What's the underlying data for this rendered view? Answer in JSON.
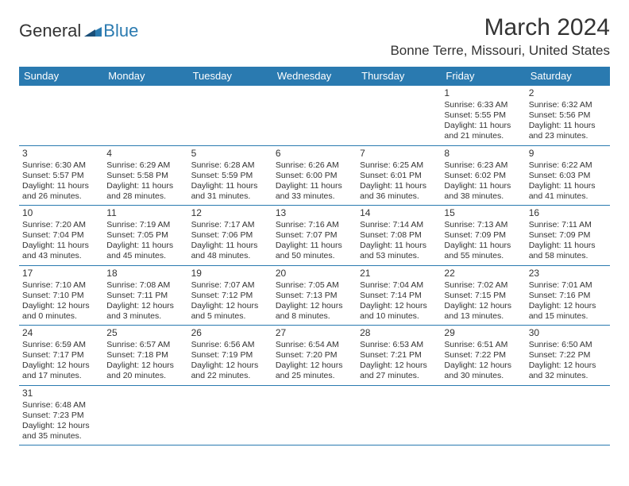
{
  "logo": {
    "text_a": "General",
    "text_b": "Blue"
  },
  "title": "March 2024",
  "location": "Bonne Terre, Missouri, United States",
  "weekdays": [
    "Sunday",
    "Monday",
    "Tuesday",
    "Wednesday",
    "Thursday",
    "Friday",
    "Saturday"
  ],
  "colors": {
    "header_bg": "#2a7ab0",
    "header_text": "#ffffff",
    "border": "#2a7ab0",
    "text": "#333333",
    "logo_blue": "#2a7ab0"
  },
  "rows": [
    [
      null,
      null,
      null,
      null,
      null,
      {
        "n": "1",
        "sunrise": "Sunrise: 6:33 AM",
        "sunset": "Sunset: 5:55 PM",
        "daylight": "Daylight: 11 hours and 21 minutes."
      },
      {
        "n": "2",
        "sunrise": "Sunrise: 6:32 AM",
        "sunset": "Sunset: 5:56 PM",
        "daylight": "Daylight: 11 hours and 23 minutes."
      }
    ],
    [
      {
        "n": "3",
        "sunrise": "Sunrise: 6:30 AM",
        "sunset": "Sunset: 5:57 PM",
        "daylight": "Daylight: 11 hours and 26 minutes."
      },
      {
        "n": "4",
        "sunrise": "Sunrise: 6:29 AM",
        "sunset": "Sunset: 5:58 PM",
        "daylight": "Daylight: 11 hours and 28 minutes."
      },
      {
        "n": "5",
        "sunrise": "Sunrise: 6:28 AM",
        "sunset": "Sunset: 5:59 PM",
        "daylight": "Daylight: 11 hours and 31 minutes."
      },
      {
        "n": "6",
        "sunrise": "Sunrise: 6:26 AM",
        "sunset": "Sunset: 6:00 PM",
        "daylight": "Daylight: 11 hours and 33 minutes."
      },
      {
        "n": "7",
        "sunrise": "Sunrise: 6:25 AM",
        "sunset": "Sunset: 6:01 PM",
        "daylight": "Daylight: 11 hours and 36 minutes."
      },
      {
        "n": "8",
        "sunrise": "Sunrise: 6:23 AM",
        "sunset": "Sunset: 6:02 PM",
        "daylight": "Daylight: 11 hours and 38 minutes."
      },
      {
        "n": "9",
        "sunrise": "Sunrise: 6:22 AM",
        "sunset": "Sunset: 6:03 PM",
        "daylight": "Daylight: 11 hours and 41 minutes."
      }
    ],
    [
      {
        "n": "10",
        "sunrise": "Sunrise: 7:20 AM",
        "sunset": "Sunset: 7:04 PM",
        "daylight": "Daylight: 11 hours and 43 minutes."
      },
      {
        "n": "11",
        "sunrise": "Sunrise: 7:19 AM",
        "sunset": "Sunset: 7:05 PM",
        "daylight": "Daylight: 11 hours and 45 minutes."
      },
      {
        "n": "12",
        "sunrise": "Sunrise: 7:17 AM",
        "sunset": "Sunset: 7:06 PM",
        "daylight": "Daylight: 11 hours and 48 minutes."
      },
      {
        "n": "13",
        "sunrise": "Sunrise: 7:16 AM",
        "sunset": "Sunset: 7:07 PM",
        "daylight": "Daylight: 11 hours and 50 minutes."
      },
      {
        "n": "14",
        "sunrise": "Sunrise: 7:14 AM",
        "sunset": "Sunset: 7:08 PM",
        "daylight": "Daylight: 11 hours and 53 minutes."
      },
      {
        "n": "15",
        "sunrise": "Sunrise: 7:13 AM",
        "sunset": "Sunset: 7:09 PM",
        "daylight": "Daylight: 11 hours and 55 minutes."
      },
      {
        "n": "16",
        "sunrise": "Sunrise: 7:11 AM",
        "sunset": "Sunset: 7:09 PM",
        "daylight": "Daylight: 11 hours and 58 minutes."
      }
    ],
    [
      {
        "n": "17",
        "sunrise": "Sunrise: 7:10 AM",
        "sunset": "Sunset: 7:10 PM",
        "daylight": "Daylight: 12 hours and 0 minutes."
      },
      {
        "n": "18",
        "sunrise": "Sunrise: 7:08 AM",
        "sunset": "Sunset: 7:11 PM",
        "daylight": "Daylight: 12 hours and 3 minutes."
      },
      {
        "n": "19",
        "sunrise": "Sunrise: 7:07 AM",
        "sunset": "Sunset: 7:12 PM",
        "daylight": "Daylight: 12 hours and 5 minutes."
      },
      {
        "n": "20",
        "sunrise": "Sunrise: 7:05 AM",
        "sunset": "Sunset: 7:13 PM",
        "daylight": "Daylight: 12 hours and 8 minutes."
      },
      {
        "n": "21",
        "sunrise": "Sunrise: 7:04 AM",
        "sunset": "Sunset: 7:14 PM",
        "daylight": "Daylight: 12 hours and 10 minutes."
      },
      {
        "n": "22",
        "sunrise": "Sunrise: 7:02 AM",
        "sunset": "Sunset: 7:15 PM",
        "daylight": "Daylight: 12 hours and 13 minutes."
      },
      {
        "n": "23",
        "sunrise": "Sunrise: 7:01 AM",
        "sunset": "Sunset: 7:16 PM",
        "daylight": "Daylight: 12 hours and 15 minutes."
      }
    ],
    [
      {
        "n": "24",
        "sunrise": "Sunrise: 6:59 AM",
        "sunset": "Sunset: 7:17 PM",
        "daylight": "Daylight: 12 hours and 17 minutes."
      },
      {
        "n": "25",
        "sunrise": "Sunrise: 6:57 AM",
        "sunset": "Sunset: 7:18 PM",
        "daylight": "Daylight: 12 hours and 20 minutes."
      },
      {
        "n": "26",
        "sunrise": "Sunrise: 6:56 AM",
        "sunset": "Sunset: 7:19 PM",
        "daylight": "Daylight: 12 hours and 22 minutes."
      },
      {
        "n": "27",
        "sunrise": "Sunrise: 6:54 AM",
        "sunset": "Sunset: 7:20 PM",
        "daylight": "Daylight: 12 hours and 25 minutes."
      },
      {
        "n": "28",
        "sunrise": "Sunrise: 6:53 AM",
        "sunset": "Sunset: 7:21 PM",
        "daylight": "Daylight: 12 hours and 27 minutes."
      },
      {
        "n": "29",
        "sunrise": "Sunrise: 6:51 AM",
        "sunset": "Sunset: 7:22 PM",
        "daylight": "Daylight: 12 hours and 30 minutes."
      },
      {
        "n": "30",
        "sunrise": "Sunrise: 6:50 AM",
        "sunset": "Sunset: 7:22 PM",
        "daylight": "Daylight: 12 hours and 32 minutes."
      }
    ],
    [
      {
        "n": "31",
        "sunrise": "Sunrise: 6:48 AM",
        "sunset": "Sunset: 7:23 PM",
        "daylight": "Daylight: 12 hours and 35 minutes."
      },
      null,
      null,
      null,
      null,
      null,
      null
    ]
  ]
}
